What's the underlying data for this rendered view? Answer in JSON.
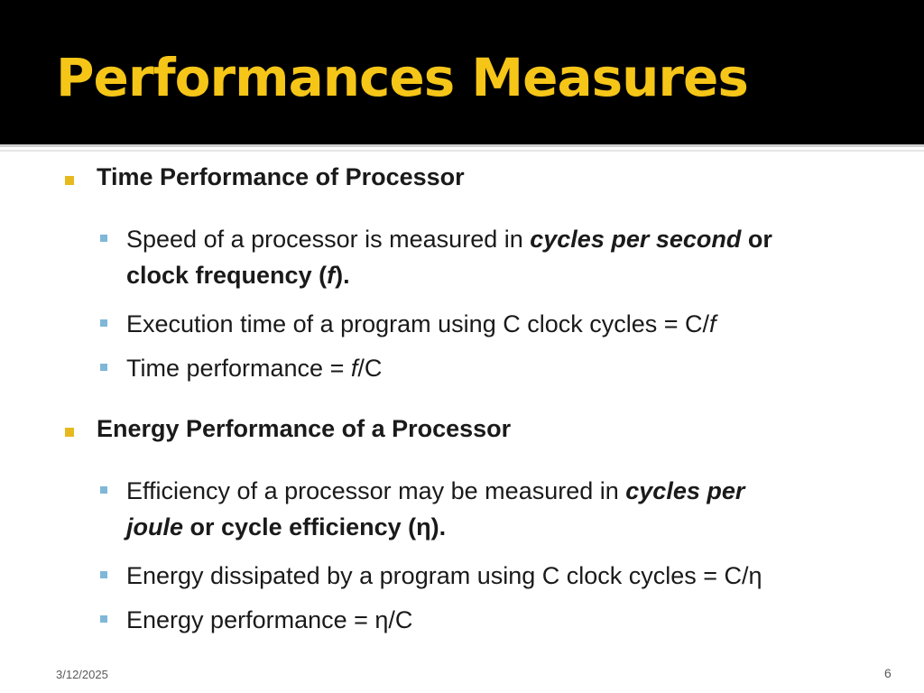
{
  "slide": {
    "title": "Performances Measures",
    "footer": {
      "date": "3/12/2025",
      "page": "6"
    }
  },
  "sections": [
    {
      "heading": "Time Performance of Processor",
      "items": [
        {
          "a": "Speed of a processor is measured in ",
          "b": "cycles per second",
          "c": " or",
          "d": "clock frequency (",
          "e": "f",
          "f": ")."
        },
        {
          "a": "Execution time of a program using C clock cycles = C/",
          "b": "f"
        },
        {
          "a": "Time performance = ",
          "b": "f",
          "c": "/C"
        }
      ]
    },
    {
      "heading": "Energy Performance of a Processor",
      "items": [
        {
          "a": "Efficiency of a processor may be measured in ",
          "b": "cycles per",
          "c": "joule",
          "d": " or cycle efficiency (η)."
        },
        {
          "a": "Energy dissipated by a program using C clock cycles = C/η"
        },
        {
          "a": "Energy performance = η/C"
        }
      ]
    }
  ],
  "colors": {
    "title": "#f5c518",
    "title_band": "#000000",
    "section_bullet": "#e6b91e",
    "sub_bullet": "#7fb7d8"
  }
}
